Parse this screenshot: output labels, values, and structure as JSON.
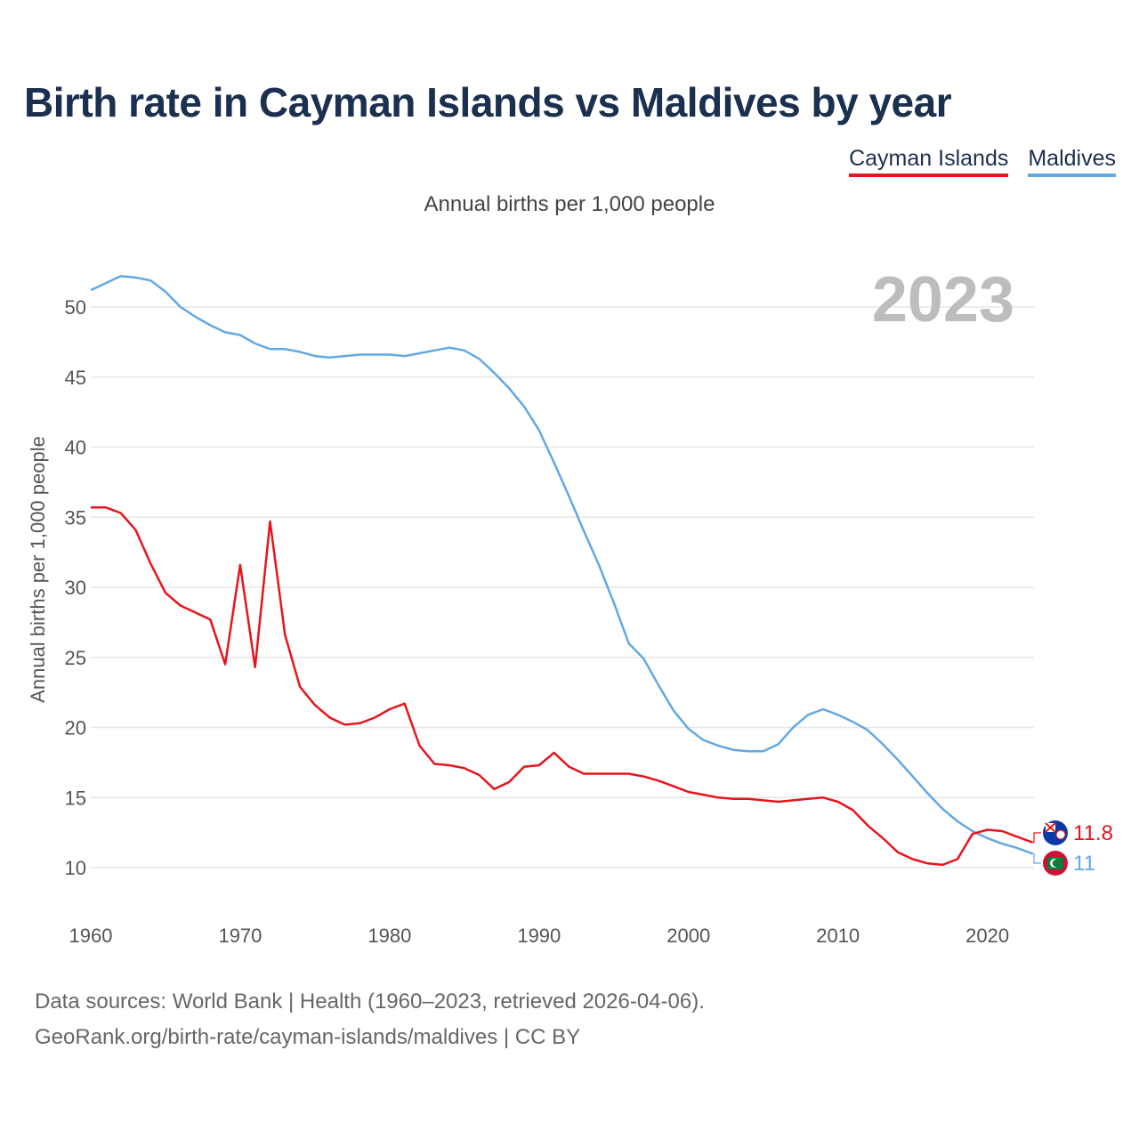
{
  "title": "Birth rate in Cayman Islands vs Maldives by year",
  "subtitle": "Annual births per 1,000 people",
  "legend": [
    {
      "label": "Cayman Islands",
      "color": "#e8141c"
    },
    {
      "label": "Maldives",
      "color": "#62a8e5"
    }
  ],
  "footer": {
    "line1": "Data sources: World Bank | Health (1960–2023, retrieved 2026-04-06).",
    "line2": "GeoRank.org/birth-rate/cayman-islands/maldives | CC BY"
  },
  "chart_data": {
    "type": "line",
    "title": "Birth rate in Cayman Islands vs Maldives by year",
    "ylabel": "Annual births per 1,000 people",
    "xlabel": "",
    "year_label": "2023",
    "xlim": [
      1960,
      2023
    ],
    "ylim": [
      7,
      54
    ],
    "x_ticks": [
      1960,
      1970,
      1980,
      1990,
      2000,
      2010,
      2020
    ],
    "y_ticks": [
      10,
      15,
      20,
      25,
      30,
      35,
      40,
      45,
      50
    ],
    "grid": true,
    "x": [
      1960,
      1961,
      1962,
      1963,
      1964,
      1965,
      1966,
      1967,
      1968,
      1969,
      1970,
      1971,
      1972,
      1973,
      1974,
      1975,
      1976,
      1977,
      1978,
      1979,
      1980,
      1981,
      1982,
      1983,
      1984,
      1985,
      1986,
      1987,
      1988,
      1989,
      1990,
      1991,
      1992,
      1993,
      1994,
      1995,
      1996,
      1997,
      1998,
      1999,
      2000,
      2001,
      2002,
      2003,
      2004,
      2005,
      2006,
      2007,
      2008,
      2009,
      2010,
      2011,
      2012,
      2013,
      2014,
      2015,
      2016,
      2017,
      2018,
      2019,
      2020,
      2021,
      2022,
      2023
    ],
    "series": [
      {
        "name": "Cayman Islands",
        "color": "#e8141c",
        "end_label": "11.8",
        "icon": "cayman-islands-flag-icon",
        "values": [
          35.7,
          35.7,
          35.3,
          34.1,
          31.7,
          29.6,
          28.7,
          28.2,
          27.7,
          24.5,
          31.6,
          24.3,
          34.7,
          26.6,
          22.9,
          21.6,
          20.7,
          20.2,
          20.3,
          20.7,
          21.3,
          21.7,
          18.7,
          17.4,
          17.3,
          17.1,
          16.6,
          15.6,
          16.1,
          17.2,
          17.3,
          18.2,
          17.2,
          16.7,
          16.7,
          16.7,
          16.7,
          16.5,
          16.2,
          15.8,
          15.4,
          15.2,
          15.0,
          14.9,
          14.9,
          14.8,
          14.7,
          14.8,
          14.9,
          15.0,
          14.7,
          14.1,
          13.0,
          12.1,
          11.1,
          10.6,
          10.3,
          10.2,
          10.6,
          12.4,
          12.7,
          12.6,
          12.2,
          11.8
        ]
      },
      {
        "name": "Maldives",
        "color": "#62a8e5",
        "end_label": "11",
        "icon": "maldives-flag-icon",
        "values": [
          51.2,
          51.7,
          52.2,
          52.1,
          51.9,
          51.1,
          50.0,
          49.3,
          48.7,
          48.2,
          48.0,
          47.4,
          47.0,
          47.0,
          46.8,
          46.5,
          46.4,
          46.5,
          46.6,
          46.6,
          46.6,
          46.5,
          46.7,
          46.9,
          47.1,
          46.9,
          46.3,
          45.3,
          44.2,
          42.9,
          41.2,
          38.9,
          36.5,
          34.0,
          31.6,
          28.9,
          26.0,
          24.9,
          23.0,
          21.2,
          19.9,
          19.1,
          18.7,
          18.4,
          18.3,
          18.3,
          18.8,
          20.0,
          20.9,
          21.3,
          20.9,
          20.4,
          19.8,
          18.8,
          17.7,
          16.5,
          15.3,
          14.2,
          13.3,
          12.6,
          12.1,
          11.7,
          11.4,
          11.0
        ]
      }
    ]
  }
}
